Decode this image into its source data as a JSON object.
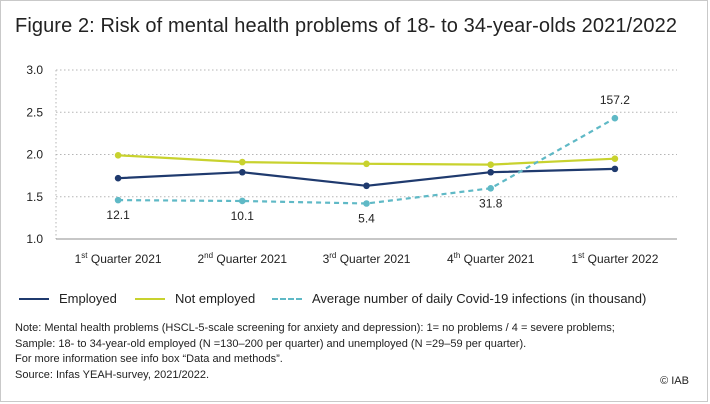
{
  "title": "Figure 2: Risk of mental health problems of 18- to 34-year-olds 2021/2022",
  "chart_data": {
    "type": "line",
    "categories": [
      {
        "num": "1",
        "sup": "st",
        "rest": " Quarter 2021"
      },
      {
        "num": "2",
        "sup": "nd",
        "rest": " Quarter 2021"
      },
      {
        "num": "3",
        "sup": "rd",
        "rest": " Quarter 2021"
      },
      {
        "num": "4",
        "sup": "th",
        "rest": " Quarter 2021"
      },
      {
        "num": "1",
        "sup": "st",
        "rest": " Quarter 2022"
      }
    ],
    "ylim": [
      1.0,
      3.0
    ],
    "yticks": [
      "1.0",
      "1.5",
      "2.0",
      "2.5",
      "3.0"
    ],
    "grid": true,
    "series": [
      {
        "name": "Employed",
        "color": "#1f3a6e",
        "dashed": false,
        "values": [
          1.72,
          1.79,
          1.63,
          1.79,
          1.83
        ],
        "labels": null
      },
      {
        "name": "Not employed",
        "color": "#c8d22e",
        "dashed": false,
        "values": [
          1.99,
          1.91,
          1.89,
          1.88,
          1.95
        ],
        "labels": null
      },
      {
        "name": "Average number of daily Covid-19 infections (in thousand)",
        "color": "#5fb9c6",
        "dashed": true,
        "values": [
          1.46,
          1.45,
          1.42,
          1.6,
          2.43
        ],
        "labels": [
          "12.1",
          "10.1",
          "5.4",
          "31.8",
          "157.2"
        ]
      }
    ]
  },
  "notes": [
    "Note: Mental health problems (HSCL-5-scale screening for anxiety and depression): 1= no problems / 4 = severe problems;",
    "Sample: 18- to 34-year-old employed (N =130–200 per quarter) and unemployed (N =29–59 per quarter).",
    "For more information see info box “Data and methods”.",
    "Source: Infas YEAH-survey, 2021/2022."
  ],
  "copyright": "© IAB"
}
